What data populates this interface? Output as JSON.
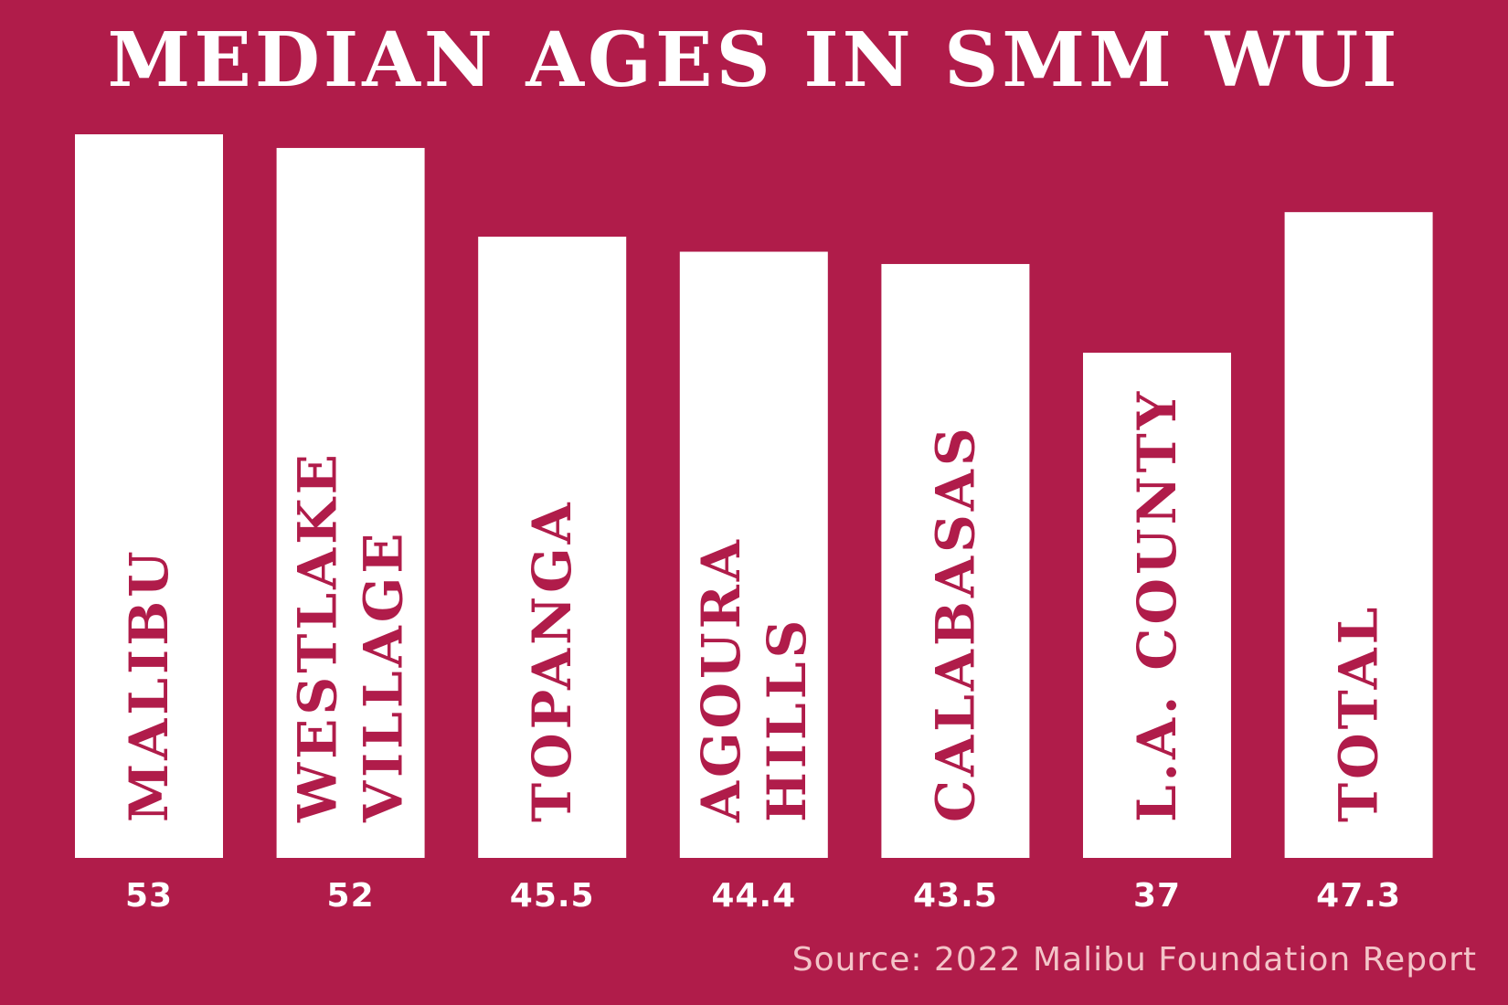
{
  "colors": {
    "background": "#b01c4a",
    "bar": "#ffffff",
    "bar_text": "#b01c4a",
    "value_text": "#ffffff",
    "source_text": "#f3c4c8"
  },
  "source": "Source: 2022 Malibu Foundation Report",
  "chart_data": {
    "type": "bar",
    "title": "MEDIAN AGES IN SMM WUI",
    "categories": [
      "MALIBU",
      "WESTLAKE VILLAGE",
      "TOPANGA",
      "AGOURA HILLS",
      "CALABASAS",
      "L.A. COUNTY",
      "TOTAL"
    ],
    "category_label_lines": [
      [
        "MALIBU"
      ],
      [
        "WESTLAKE",
        "VILLAGE"
      ],
      [
        "TOPANGA"
      ],
      [
        "AGOURA",
        "HILLS"
      ],
      [
        "CALABASAS"
      ],
      [
        "L.A. COUNTY"
      ],
      [
        "TOTAL"
      ]
    ],
    "values": [
      53,
      52,
      45.5,
      44.4,
      43.5,
      37,
      47.3
    ],
    "value_labels": [
      "53",
      "52",
      "45.5",
      "44.4",
      "43.5",
      "37",
      "47.3"
    ],
    "xlabel": "",
    "ylabel": "",
    "grid": false
  }
}
